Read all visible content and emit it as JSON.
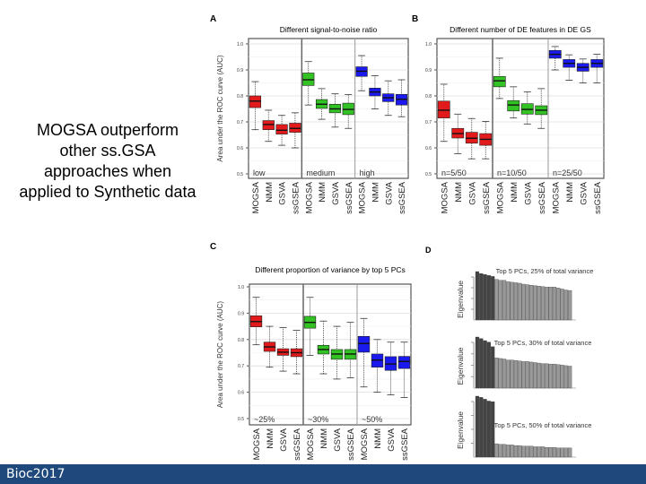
{
  "slide": {
    "body_text": "MOGSA outperform other ss.GSA approaches when applied to Synthetic data",
    "footer": "Bioc2017"
  },
  "colors": {
    "red": "#e31a1c",
    "green": "#33c224",
    "blue": "#1a1aee",
    "footer": "#1f497d"
  },
  "chart_data": [
    {
      "panel": "A",
      "type": "boxplot",
      "title": "Different signal-to-noise ratio",
      "ylabel": "Area under the ROC curve (AUC)",
      "ylim": [
        0.5,
        1.0
      ],
      "yticks": [
        "0.5",
        "0.6",
        "0.7",
        "0.8",
        "0.9",
        "1.0"
      ],
      "categories": [
        "MOGSA",
        "NMM",
        "GSVA",
        "ssGSEA"
      ],
      "groups": [
        {
          "label": "low",
          "color": "red",
          "boxes": [
            [
              0.67,
              0.755,
              0.78,
              0.8,
              0.855
            ],
            [
              0.625,
              0.67,
              0.69,
              0.705,
              0.745
            ],
            [
              0.61,
              0.653,
              0.668,
              0.69,
              0.725
            ],
            [
              0.6,
              0.66,
              0.675,
              0.695,
              0.735
            ]
          ]
        },
        {
          "label": "medium",
          "color": "green",
          "boxes": [
            [
              0.765,
              0.84,
              0.862,
              0.888,
              0.932
            ],
            [
              0.71,
              0.752,
              0.768,
              0.786,
              0.828
            ],
            [
              0.68,
              0.735,
              0.75,
              0.768,
              0.808
            ],
            [
              0.675,
              0.728,
              0.748,
              0.772,
              0.805
            ]
          ]
        },
        {
          "label": "high",
          "color": "blue",
          "boxes": [
            [
              0.82,
              0.875,
              0.895,
              0.912,
              0.955
            ],
            [
              0.75,
              0.8,
              0.815,
              0.83,
              0.878
            ],
            [
              0.725,
              0.778,
              0.793,
              0.808,
              0.858
            ],
            [
              0.72,
              0.765,
              0.787,
              0.806,
              0.862
            ]
          ]
        }
      ]
    },
    {
      "panel": "B",
      "type": "boxplot",
      "title": "Different number of DE features in DE GS",
      "ylabel": "",
      "ylim": [
        0.5,
        1.0
      ],
      "yticks": [
        "0.5",
        "0.6",
        "0.7",
        "0.8",
        "0.9",
        "1.0"
      ],
      "categories": [
        "MOGSA",
        "NMM",
        "GSVA",
        "ssGSEA"
      ],
      "groups": [
        {
          "label": "n=5/50",
          "color": "red",
          "boxes": [
            [
              0.625,
              0.715,
              0.745,
              0.78,
              0.845
            ],
            [
              0.578,
              0.638,
              0.655,
              0.675,
              0.73
            ],
            [
              0.558,
              0.618,
              0.637,
              0.66,
              0.713
            ],
            [
              0.558,
              0.61,
              0.633,
              0.655,
              0.702
            ]
          ]
        },
        {
          "label": "n=10/50",
          "color": "green",
          "boxes": [
            [
              0.79,
              0.835,
              0.858,
              0.875,
              0.945
            ],
            [
              0.715,
              0.742,
              0.765,
              0.782,
              0.835
            ],
            [
              0.692,
              0.73,
              0.748,
              0.77,
              0.815
            ],
            [
              0.675,
              0.728,
              0.745,
              0.762,
              0.828
            ]
          ]
        },
        {
          "label": "n=25/50",
          "color": "blue",
          "boxes": [
            [
              0.9,
              0.945,
              0.96,
              0.975,
              0.99
            ],
            [
              0.86,
              0.91,
              0.925,
              0.94,
              0.958
            ],
            [
              0.85,
              0.895,
              0.91,
              0.925,
              0.942
            ],
            [
              0.85,
              0.91,
              0.925,
              0.94,
              0.96
            ]
          ]
        }
      ]
    },
    {
      "panel": "C",
      "type": "boxplot",
      "title": "Different proportion of variance by top 5 PCs",
      "ylabel": "Area under the ROC curve (AUC)",
      "ylim": [
        0.5,
        1.0
      ],
      "yticks": [
        "0.5",
        "0.6",
        "0.7",
        "0.8",
        "0.9",
        "1.0"
      ],
      "categories": [
        "MOGSA",
        "NMM",
        "GSVA",
        "ssGSEA"
      ],
      "groups": [
        {
          "label": "~25%",
          "color": "red",
          "boxes": [
            [
              0.78,
              0.848,
              0.868,
              0.89,
              0.96
            ],
            [
              0.695,
              0.755,
              0.772,
              0.79,
              0.85
            ],
            [
              0.68,
              0.74,
              0.752,
              0.765,
              0.845
            ],
            [
              0.67,
              0.735,
              0.75,
              0.765,
              0.835
            ]
          ]
        },
        {
          "label": "~30%",
          "color": "green",
          "boxes": [
            [
              0.74,
              0.843,
              0.865,
              0.888,
              0.96
            ],
            [
              0.67,
              0.745,
              0.762,
              0.778,
              0.87
            ],
            [
              0.65,
              0.725,
              0.745,
              0.762,
              0.85
            ],
            [
              0.655,
              0.725,
              0.745,
              0.762,
              0.865
            ]
          ]
        },
        {
          "label": "~50%",
          "color": "blue",
          "boxes": [
            [
              0.62,
              0.752,
              0.785,
              0.812,
              0.88
            ],
            [
              0.6,
              0.695,
              0.722,
              0.745,
              0.8
            ],
            [
              0.59,
              0.683,
              0.707,
              0.735,
              0.79
            ],
            [
              0.58,
              0.69,
              0.717,
              0.736,
              0.79
            ]
          ]
        }
      ]
    },
    {
      "panel": "D",
      "type": "bar",
      "ylabel": "Eigenvalue",
      "subplots": [
        {
          "title": "Top 5 PCs, 25% of total variance",
          "values": [
            1.0,
            0.96,
            0.94,
            0.92,
            0.9,
            0.84,
            0.82,
            0.82,
            0.79,
            0.78,
            0.77,
            0.76,
            0.74,
            0.73,
            0.72,
            0.71,
            0.7,
            0.69,
            0.68,
            0.68,
            0.68,
            0.66,
            0.64,
            0.62,
            0.61
          ]
        },
        {
          "title": "Top 5 PCs, 30% of total variance",
          "values": [
            1.0,
            0.97,
            0.93,
            0.9,
            0.81,
            0.59,
            0.58,
            0.57,
            0.55,
            0.55,
            0.54,
            0.53,
            0.52,
            0.52,
            0.51,
            0.5,
            0.49,
            0.48,
            0.48,
            0.47,
            0.47,
            0.46,
            0.45,
            0.44,
            0.43
          ]
        },
        {
          "title": "Top 5 PCs, 50% of total variance",
          "values": [
            1.0,
            0.98,
            0.95,
            0.92,
            0.91,
            0.22,
            0.21,
            0.21,
            0.2,
            0.2,
            0.19,
            0.19,
            0.18,
            0.18,
            0.18,
            0.17,
            0.17,
            0.17,
            0.16,
            0.16,
            0.16,
            0.15,
            0.15,
            0.15,
            0.15
          ]
        }
      ]
    }
  ]
}
